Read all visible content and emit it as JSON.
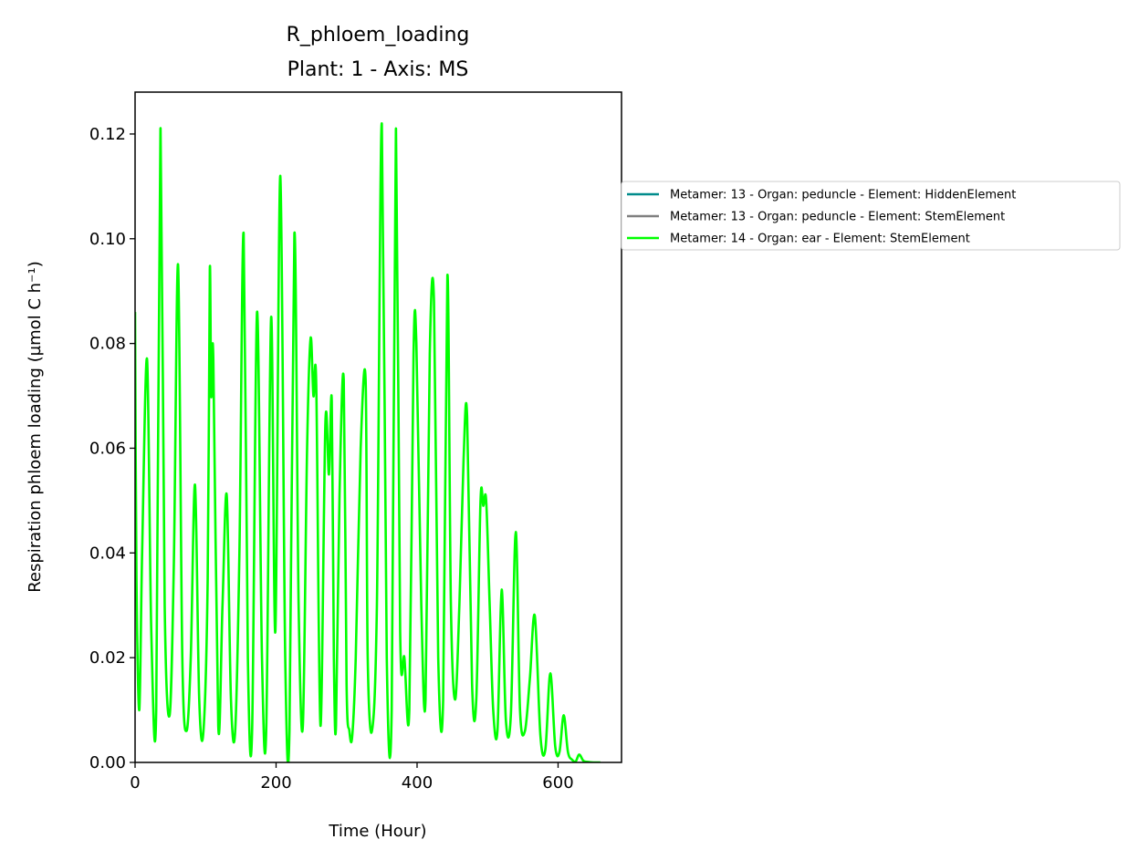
{
  "chart_data": {
    "type": "line",
    "title": "R_phloem_loading",
    "subtitle": "Plant: 1 - Axis: MS",
    "xlabel": "Time (Hour)",
    "ylabel": "Respiration phloem loading (µmol C h⁻¹)",
    "xlim": [
      0,
      690
    ],
    "ylim": [
      0,
      0.128
    ],
    "xticks": [
      0,
      200,
      400,
      600
    ],
    "xtick_labels": [
      "0",
      "200",
      "400",
      "600"
    ],
    "yticks": [
      0,
      0.02,
      0.04,
      0.06,
      0.08,
      0.1,
      0.12
    ],
    "ytick_labels": [
      "0.00",
      "0.02",
      "0.04",
      "0.06",
      "0.08",
      "0.10",
      "0.12"
    ],
    "legend_position": "outside-right",
    "series": [
      {
        "name": "Metamer: 13 - Organ: peduncle - Element: HiddenElement",
        "color": "#008b8b",
        "x": [],
        "y": []
      },
      {
        "name": "Metamer: 13 - Organ: peduncle - Element: StemElement",
        "color": "#808080",
        "x": [],
        "y": []
      },
      {
        "name": "Metamer: 14 - Organ: ear - Element: StemElement",
        "color": "#00ff00",
        "x": [
          0,
          2,
          6,
          10,
          17,
          23,
          30,
          36,
          42,
          49,
          55,
          61,
          67,
          73,
          79,
          85,
          91,
          97,
          103,
          106,
          108,
          111,
          118,
          124,
          130,
          136,
          142,
          148,
          154,
          160,
          166,
          173,
          180,
          186,
          193,
          199,
          206,
          213,
          219,
          226,
          232,
          238,
          244,
          249,
          253,
          257,
          263,
          270,
          275,
          279,
          282,
          285,
          290,
          296,
          300,
          304,
          308,
          313,
          320,
          327,
          330,
          336,
          343,
          350,
          357,
          364,
          370,
          376,
          382,
          389,
          395,
          399,
          406,
          412,
          418,
          424,
          430,
          437,
          443,
          448,
          454,
          460,
          466,
          471,
          478,
          484,
          490,
          494,
          498,
          503,
          508,
          514,
          520,
          526,
          533,
          540,
          546,
          553,
          560,
          567,
          575,
          582,
          589,
          596,
          602,
          608,
          614,
          620,
          625,
          630,
          636,
          642,
          650,
          660
        ],
        "y": [
          0.086,
          0.035,
          0.01,
          0.04,
          0.077,
          0.025,
          0.01,
          0.121,
          0.03,
          0.009,
          0.038,
          0.095,
          0.02,
          0.006,
          0.02,
          0.053,
          0.012,
          0.006,
          0.035,
          0.094,
          0.07,
          0.077,
          0.007,
          0.03,
          0.051,
          0.012,
          0.006,
          0.04,
          0.101,
          0.02,
          0.006,
          0.086,
          0.02,
          0.006,
          0.085,
          0.025,
          0.112,
          0.02,
          0.006,
          0.101,
          0.03,
          0.007,
          0.06,
          0.081,
          0.07,
          0.072,
          0.007,
          0.065,
          0.055,
          0.069,
          0.02,
          0.007,
          0.051,
          0.073,
          0.015,
          0.006,
          0.005,
          0.02,
          0.06,
          0.073,
          0.02,
          0.006,
          0.03,
          0.122,
          0.02,
          0.01,
          0.121,
          0.025,
          0.02,
          0.01,
          0.078,
          0.08,
          0.03,
          0.012,
          0.078,
          0.088,
          0.02,
          0.012,
          0.093,
          0.03,
          0.012,
          0.03,
          0.058,
          0.066,
          0.015,
          0.012,
          0.05,
          0.049,
          0.05,
          0.03,
          0.01,
          0.006,
          0.033,
          0.008,
          0.009,
          0.044,
          0.01,
          0.006,
          0.016,
          0.028,
          0.005,
          0.0025,
          0.017,
          0.003,
          0.002,
          0.009,
          0.002,
          0.0005,
          0.0002,
          0.0015,
          0.0003,
          0.0001,
          0.0,
          0.0
        ]
      }
    ]
  }
}
